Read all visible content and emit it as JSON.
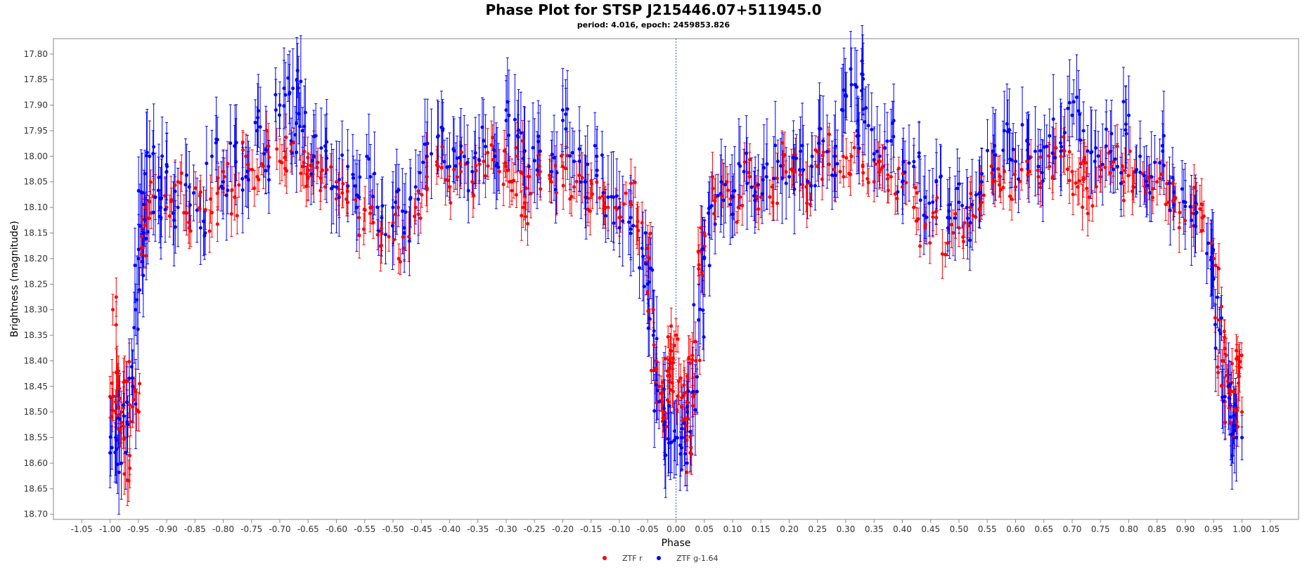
{
  "chart_data": {
    "type": "scatter",
    "title": "Phase Plot for STSP J215446.07+511945.0",
    "subtitle": "period: 4.016, epoch: 2459853.826",
    "xlabel": "Phase",
    "ylabel": "Brightness (magnitude)",
    "xlim": [
      -1.1,
      1.1
    ],
    "ylim": [
      17.77,
      18.71
    ],
    "y_inverted": false,
    "x_ticks": [
      "-1.05",
      "-1.00",
      "-0.95",
      "-0.90",
      "-0.85",
      "-0.80",
      "-0.75",
      "-0.70",
      "-0.65",
      "-0.60",
      "-0.55",
      "-0.50",
      "-0.45",
      "-0.40",
      "-0.35",
      "-0.30",
      "-0.25",
      "-0.20",
      "-0.15",
      "-0.10",
      "-0.05",
      "0.00",
      "0.05",
      "0.10",
      "0.15",
      "0.20",
      "0.25",
      "0.30",
      "0.35",
      "0.40",
      "0.45",
      "0.50",
      "0.55",
      "0.60",
      "0.65",
      "0.70",
      "0.75",
      "0.80",
      "0.85",
      "0.90",
      "0.95",
      "1.00",
      "1.05"
    ],
    "y_ticks": [
      "17.80",
      "17.85",
      "17.90",
      "17.95",
      "18.00",
      "18.05",
      "18.10",
      "18.15",
      "18.20",
      "18.25",
      "18.30",
      "18.35",
      "18.40",
      "18.45",
      "18.50",
      "18.55",
      "18.60",
      "18.65",
      "18.70"
    ],
    "reference_line_x": 0.0,
    "grid": false,
    "legend_position": "bottom",
    "series": [
      {
        "name": "ZTF r",
        "color": "#ff0000",
        "points": [
          [
            -1.0,
            18.47
          ],
          [
            -0.995,
            18.3
          ],
          [
            -0.99,
            18.48
          ],
          [
            -0.985,
            18.42
          ],
          [
            -0.98,
            18.5
          ],
          [
            -0.975,
            18.55
          ],
          [
            -0.97,
            18.44
          ],
          [
            -0.965,
            18.61
          ],
          [
            -0.96,
            18.49
          ],
          [
            -0.955,
            18.46
          ],
          [
            -0.945,
            18.18
          ],
          [
            -0.935,
            18.12
          ],
          [
            -0.92,
            18.08
          ],
          [
            -0.9,
            18.1
          ],
          [
            -0.88,
            18.05
          ],
          [
            -0.86,
            18.14
          ],
          [
            -0.84,
            18.07
          ],
          [
            -0.82,
            18.11
          ],
          [
            -0.8,
            18.03
          ],
          [
            -0.78,
            18.08
          ],
          [
            -0.76,
            18.0
          ],
          [
            -0.74,
            18.04
          ],
          [
            -0.72,
            17.98
          ],
          [
            -0.7,
            18.01
          ],
          [
            -0.68,
            17.99
          ],
          [
            -0.66,
            18.02
          ],
          [
            -0.65,
            18.04
          ],
          [
            -0.64,
            18.0
          ],
          [
            -0.62,
            18.06
          ],
          [
            -0.6,
            18.05
          ],
          [
            -0.58,
            18.09
          ],
          [
            -0.56,
            18.12
          ],
          [
            -0.54,
            18.1
          ],
          [
            -0.52,
            18.15
          ],
          [
            -0.5,
            18.13
          ],
          [
            -0.48,
            18.18
          ],
          [
            -0.46,
            18.1
          ],
          [
            -0.44,
            18.04
          ],
          [
            -0.42,
            18.02
          ],
          [
            -0.4,
            18.06
          ],
          [
            -0.38,
            18.03
          ],
          [
            -0.36,
            18.05
          ],
          [
            -0.34,
            18.01
          ],
          [
            -0.32,
            17.99
          ],
          [
            -0.3,
            18.02
          ],
          [
            -0.29,
            18.05
          ],
          [
            -0.28,
            18.0
          ],
          [
            -0.27,
            18.1
          ],
          [
            -0.26,
            18.04
          ],
          [
            -0.24,
            18.03
          ],
          [
            -0.22,
            18.05
          ],
          [
            -0.2,
            18.02
          ],
          [
            -0.18,
            18.06
          ],
          [
            -0.16,
            18.08
          ],
          [
            -0.14,
            18.05
          ],
          [
            -0.12,
            18.1
          ],
          [
            -0.1,
            18.12
          ],
          [
            -0.08,
            18.09
          ],
          [
            -0.06,
            18.13
          ],
          [
            -0.05,
            18.18
          ],
          [
            -0.04,
            18.3
          ],
          [
            -0.035,
            18.4
          ],
          [
            -0.03,
            18.45
          ],
          [
            -0.025,
            18.48
          ],
          [
            -0.02,
            18.5
          ],
          [
            -0.015,
            18.42
          ],
          [
            -0.01,
            18.38
          ],
          [
            -0.005,
            18.46
          ],
          [
            0.0,
            18.35
          ],
          [
            0.005,
            18.44
          ],
          [
            0.01,
            18.49
          ],
          [
            0.015,
            18.52
          ],
          [
            0.02,
            18.43
          ],
          [
            0.025,
            18.58
          ],
          [
            0.03,
            18.47
          ],
          [
            0.035,
            18.4
          ],
          [
            0.04,
            18.22
          ],
          [
            0.05,
            18.15
          ],
          [
            0.07,
            18.08
          ],
          [
            0.09,
            18.05
          ],
          [
            0.11,
            18.1
          ],
          [
            0.13,
            18.04
          ],
          [
            0.15,
            18.08
          ],
          [
            0.17,
            18.06
          ],
          [
            0.19,
            18.0
          ],
          [
            0.21,
            18.03
          ],
          [
            0.23,
            18.06
          ],
          [
            0.25,
            18.02
          ],
          [
            0.27,
            17.99
          ],
          [
            0.29,
            18.03
          ],
          [
            0.31,
            18.0
          ],
          [
            0.33,
            18.02
          ],
          [
            0.35,
            18.05
          ],
          [
            0.36,
            18.01
          ],
          [
            0.38,
            18.04
          ],
          [
            0.4,
            18.06
          ],
          [
            0.42,
            18.1
          ],
          [
            0.44,
            18.14
          ],
          [
            0.46,
            18.12
          ],
          [
            0.48,
            18.17
          ],
          [
            0.5,
            18.14
          ],
          [
            0.52,
            18.1
          ],
          [
            0.54,
            18.09
          ],
          [
            0.56,
            18.05
          ],
          [
            0.58,
            18.03
          ],
          [
            0.6,
            18.06
          ],
          [
            0.62,
            18.01
          ],
          [
            0.64,
            18.04
          ],
          [
            0.66,
            18.02
          ],
          [
            0.68,
            18.0
          ],
          [
            0.7,
            18.03
          ],
          [
            0.71,
            18.06
          ],
          [
            0.72,
            18.01
          ],
          [
            0.73,
            18.08
          ],
          [
            0.75,
            18.04
          ],
          [
            0.77,
            18.02
          ],
          [
            0.79,
            18.05
          ],
          [
            0.81,
            18.03
          ],
          [
            0.83,
            18.07
          ],
          [
            0.85,
            18.05
          ],
          [
            0.87,
            18.09
          ],
          [
            0.89,
            18.11
          ],
          [
            0.91,
            18.1
          ],
          [
            0.93,
            18.12
          ],
          [
            0.95,
            18.2
          ],
          [
            0.96,
            18.32
          ],
          [
            0.965,
            18.4
          ],
          [
            0.97,
            18.48
          ],
          [
            0.975,
            18.44
          ],
          [
            0.98,
            18.52
          ],
          [
            0.985,
            18.46
          ],
          [
            0.99,
            18.38
          ],
          [
            0.995,
            18.43
          ],
          [
            1.0,
            18.5
          ]
        ]
      },
      {
        "name": "ZTF g-1.64",
        "color": "#0000ff",
        "points": [
          [
            -1.0,
            18.58
          ],
          [
            -0.99,
            18.55
          ],
          [
            -0.98,
            18.6
          ],
          [
            -0.97,
            18.52
          ],
          [
            -0.96,
            18.45
          ],
          [
            -0.955,
            18.3
          ],
          [
            -0.95,
            18.2
          ],
          [
            -0.945,
            18.07
          ],
          [
            -0.94,
            18.15
          ],
          [
            -0.93,
            18.0
          ],
          [
            -0.92,
            18.08
          ],
          [
            -0.91,
            18.12
          ],
          [
            -0.9,
            18.03
          ],
          [
            -0.88,
            18.1
          ],
          [
            -0.86,
            18.06
          ],
          [
            -0.84,
            18.14
          ],
          [
            -0.82,
            18.0
          ],
          [
            -0.8,
            18.05
          ],
          [
            -0.78,
            17.98
          ],
          [
            -0.76,
            18.04
          ],
          [
            -0.74,
            17.95
          ],
          [
            -0.72,
            18.02
          ],
          [
            -0.7,
            17.9
          ],
          [
            -0.69,
            17.88
          ],
          [
            -0.68,
            17.97
          ],
          [
            -0.67,
            17.85
          ],
          [
            -0.66,
            17.95
          ],
          [
            -0.64,
            18.0
          ],
          [
            -0.62,
            17.98
          ],
          [
            -0.6,
            18.06
          ],
          [
            -0.58,
            18.02
          ],
          [
            -0.56,
            18.08
          ],
          [
            -0.54,
            18.04
          ],
          [
            -0.52,
            18.12
          ],
          [
            -0.5,
            18.1
          ],
          [
            -0.48,
            18.14
          ],
          [
            -0.46,
            18.06
          ],
          [
            -0.44,
            18.0
          ],
          [
            -0.42,
            17.96
          ],
          [
            -0.4,
            18.02
          ],
          [
            -0.38,
            17.98
          ],
          [
            -0.36,
            18.03
          ],
          [
            -0.34,
            17.97
          ],
          [
            -0.32,
            18.0
          ],
          [
            -0.3,
            17.93
          ],
          [
            -0.28,
            17.96
          ],
          [
            -0.26,
            18.02
          ],
          [
            -0.24,
            17.99
          ],
          [
            -0.22,
            18.03
          ],
          [
            -0.2,
            17.93
          ],
          [
            -0.18,
            18.01
          ],
          [
            -0.16,
            18.05
          ],
          [
            -0.14,
            18.0
          ],
          [
            -0.12,
            18.08
          ],
          [
            -0.1,
            18.1
          ],
          [
            -0.08,
            18.12
          ],
          [
            -0.06,
            18.18
          ],
          [
            -0.05,
            18.25
          ],
          [
            -0.04,
            18.35
          ],
          [
            -0.03,
            18.48
          ],
          [
            -0.02,
            18.52
          ],
          [
            -0.01,
            18.56
          ],
          [
            0.0,
            18.55
          ],
          [
            0.01,
            18.57
          ],
          [
            0.02,
            18.5
          ],
          [
            0.03,
            18.46
          ],
          [
            0.04,
            18.32
          ],
          [
            0.05,
            18.2
          ],
          [
            0.06,
            18.1
          ],
          [
            0.08,
            18.05
          ],
          [
            0.1,
            18.08
          ],
          [
            0.12,
            18.03
          ],
          [
            0.14,
            18.07
          ],
          [
            0.16,
            18.04
          ],
          [
            0.18,
            18.01
          ],
          [
            0.2,
            18.04
          ],
          [
            0.22,
            17.99
          ],
          [
            0.24,
            18.02
          ],
          [
            0.26,
            17.97
          ],
          [
            0.28,
            18.0
          ],
          [
            0.3,
            17.88
          ],
          [
            0.31,
            17.86
          ],
          [
            0.32,
            17.95
          ],
          [
            0.33,
            17.84
          ],
          [
            0.34,
            17.94
          ],
          [
            0.36,
            18.0
          ],
          [
            0.38,
            17.97
          ],
          [
            0.4,
            18.05
          ],
          [
            0.42,
            18.02
          ],
          [
            0.44,
            18.08
          ],
          [
            0.46,
            18.05
          ],
          [
            0.48,
            18.12
          ],
          [
            0.5,
            18.09
          ],
          [
            0.52,
            18.13
          ],
          [
            0.54,
            18.05
          ],
          [
            0.56,
            17.99
          ],
          [
            0.58,
            17.95
          ],
          [
            0.6,
            18.01
          ],
          [
            0.62,
            17.97
          ],
          [
            0.64,
            18.02
          ],
          [
            0.66,
            17.96
          ],
          [
            0.68,
            17.99
          ],
          [
            0.7,
            17.92
          ],
          [
            0.72,
            17.95
          ],
          [
            0.74,
            18.01
          ],
          [
            0.76,
            17.98
          ],
          [
            0.78,
            18.02
          ],
          [
            0.8,
            17.92
          ],
          [
            0.82,
            18.0
          ],
          [
            0.84,
            18.04
          ],
          [
            0.86,
            17.99
          ],
          [
            0.88,
            18.07
          ],
          [
            0.9,
            18.09
          ],
          [
            0.92,
            18.11
          ],
          [
            0.94,
            18.17
          ],
          [
            0.95,
            18.24
          ],
          [
            0.96,
            18.34
          ],
          [
            0.97,
            18.47
          ],
          [
            0.98,
            18.51
          ],
          [
            0.99,
            18.55
          ],
          [
            1.0,
            18.55
          ]
        ]
      }
    ]
  }
}
